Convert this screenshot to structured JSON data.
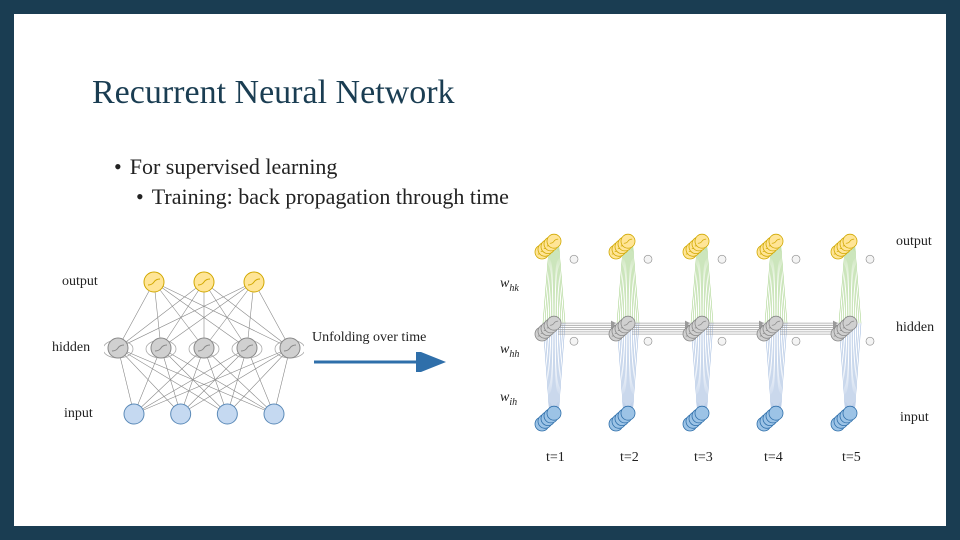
{
  "title": "Recurrent Neural Network",
  "bullets": {
    "b1": "For supervised learning",
    "b2": "Training: back propagation through time"
  },
  "labels": {
    "output_right": "output",
    "output_left": "output",
    "hidden_right": "hidden",
    "hidden_left": "hidden",
    "input_right": "input",
    "input_left": "input",
    "unfold": "Unfolding over time"
  },
  "weights": {
    "whk": "w",
    "whh": "w",
    "wih": "w",
    "sub_hk": "hk",
    "sub_hh": "hh",
    "sub_ih": "ih"
  },
  "time": {
    "t1": "t=1",
    "t2": "t=2",
    "t3": "t=3",
    "t4": "t=4",
    "t5": "t=5"
  },
  "folded_net": {
    "input_n": 4,
    "hidden_n": 5,
    "output_n": 3,
    "colors": {
      "input": "#c5d9f1",
      "input_stroke": "#5b8ab8",
      "hidden": "#d0d0d0",
      "hidden_stroke": "#888",
      "output": "#ffe597",
      "output_stroke": "#d1a800",
      "edge": "#888",
      "rec": "#aaa"
    }
  },
  "unfolded_net": {
    "steps": 5,
    "per_layer": 5,
    "depth": 5,
    "colors": {
      "input": "#9cc3e6",
      "input_stroke": "#2f6faa",
      "hidden": "#d0d0d0",
      "hidden_stroke": "#888",
      "output": "#ffe597",
      "output_stroke": "#d1a800",
      "edge_in": "#8aa9d6",
      "edge_hid": "#9a9a9a",
      "edge_out": "#8fc66a",
      "bias": "#888"
    }
  },
  "arrow_color": "#2f6faa"
}
